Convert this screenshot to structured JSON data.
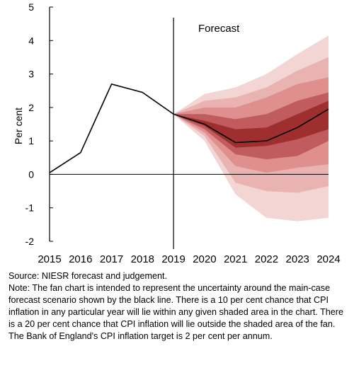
{
  "chart_data": {
    "type": "line",
    "ylabel": "Per cent",
    "annotation": "Forecast",
    "ylim": [
      -2,
      5
    ],
    "yticks": [
      "5",
      "4",
      "3",
      "2",
      "1",
      "0",
      "-1",
      "-2"
    ],
    "xticks": [
      "2015",
      "2016",
      "2017",
      "2018",
      "2019",
      "2020",
      "2021",
      "2022",
      "2023",
      "2024"
    ],
    "xlim": [
      2015,
      2024
    ],
    "forecast_start": 2019,
    "central": {
      "x": [
        2015,
        2016,
        2017,
        2018,
        2019,
        2020,
        2021,
        2022,
        2023,
        2024
      ],
      "values": [
        0.05,
        0.65,
        2.7,
        2.45,
        1.8,
        1.5,
        0.95,
        1.0,
        1.4,
        1.95
      ]
    },
    "fan": {
      "x": [
        2019,
        2020,
        2021,
        2022,
        2023,
        2024
      ],
      "bands": [
        {
          "upper": [
            1.8,
            2.4,
            2.6,
            3.0,
            3.6,
            4.15
          ],
          "lower": [
            1.8,
            1.0,
            -0.6,
            -1.3,
            -1.4,
            -1.3
          ]
        },
        {
          "upper": [
            1.8,
            2.2,
            2.3,
            2.6,
            3.1,
            3.5
          ],
          "lower": [
            1.8,
            1.15,
            -0.25,
            -0.5,
            -0.55,
            -0.35
          ]
        },
        {
          "upper": [
            1.8,
            2.0,
            2.0,
            2.3,
            2.7,
            2.9
          ],
          "lower": [
            1.8,
            1.25,
            0.25,
            0.05,
            0.2,
            0.3
          ]
        },
        {
          "upper": [
            1.8,
            1.8,
            1.65,
            1.8,
            2.2,
            2.45
          ],
          "lower": [
            1.8,
            1.35,
            0.6,
            0.45,
            0.55,
            1.0
          ]
        },
        {
          "upper": [
            1.8,
            1.6,
            1.35,
            1.4,
            1.8,
            2.2
          ],
          "lower": [
            1.8,
            1.45,
            0.8,
            0.85,
            1.05,
            1.35
          ]
        }
      ],
      "colors": [
        "#f3d5d3",
        "#e9b3b1",
        "#de8f8e",
        "#c05c5d",
        "#9f2e2f"
      ]
    }
  },
  "notes": {
    "source": "Source: NIESR forecast and judgement.",
    "note": "Note: The fan chart is intended to represent the uncertainty around the main-case forecast scenario shown by the black line. There is a 10 per cent chance that CPI inflation in any particular year will lie within any given shaded area in the chart. There is a 20 per cent chance that CPI inflation will lie outside the shaded area of the fan. The Bank of England's CPI inflation target is 2 per cent per annum."
  }
}
